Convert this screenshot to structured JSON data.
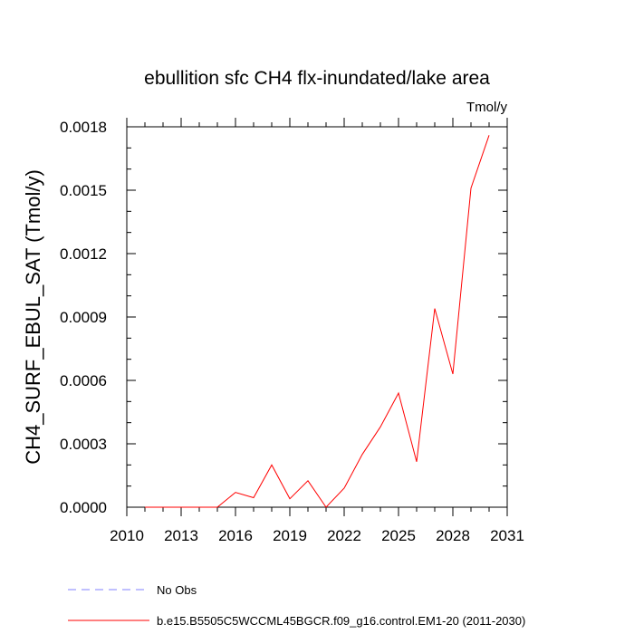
{
  "chart_data": {
    "type": "line",
    "title": "ebullition sfc CH4 flx-inundated/lake area",
    "units_label": "Tmol/y",
    "ylabel": "CH4_SURF_EBUL_SAT  (Tmol/y)",
    "xlabel": "",
    "xlim": [
      2010,
      2031
    ],
    "ylim": [
      0,
      0.0018
    ],
    "x_ticks": [
      "2010",
      "2013",
      "2016",
      "2019",
      "2022",
      "2025",
      "2028",
      "2031"
    ],
    "y_ticks": [
      "0.0000",
      "0.0003",
      "0.0006",
      "0.0009",
      "0.0012",
      "0.0015",
      "0.0018"
    ],
    "grid": false,
    "legend_position": "bottom-left, below plot",
    "series": [
      {
        "name": "b.e15.B5505C5WCCML45BGCR.f09_g16.control.EM1-20 (2011-2030)",
        "color": "#ff0000",
        "style": "solid",
        "x": [
          2011,
          2012,
          2013,
          2014,
          2015,
          2016,
          2017,
          2018,
          2019,
          2020,
          2021,
          2022,
          2023,
          2024,
          2025,
          2026,
          2027,
          2028,
          2029,
          2030
        ],
        "y": [
          0.0,
          0.0,
          0.0,
          0.0,
          0.0,
          7e-05,
          4.5e-05,
          0.0002,
          4e-05,
          0.000125,
          0.0,
          9e-05,
          0.00025,
          0.00038,
          0.00054,
          0.000215,
          0.00094,
          0.00063,
          0.00151,
          0.00176
        ]
      }
    ],
    "legend_entries": [
      {
        "label": "No Obs",
        "color": "#8080ff",
        "style": "dashed"
      },
      {
        "label": "b.e15.B5505C5WCCML45BGCR.f09_g16.control.EM1-20 (2011-2030)",
        "color": "#ff0000",
        "style": "solid"
      }
    ]
  }
}
